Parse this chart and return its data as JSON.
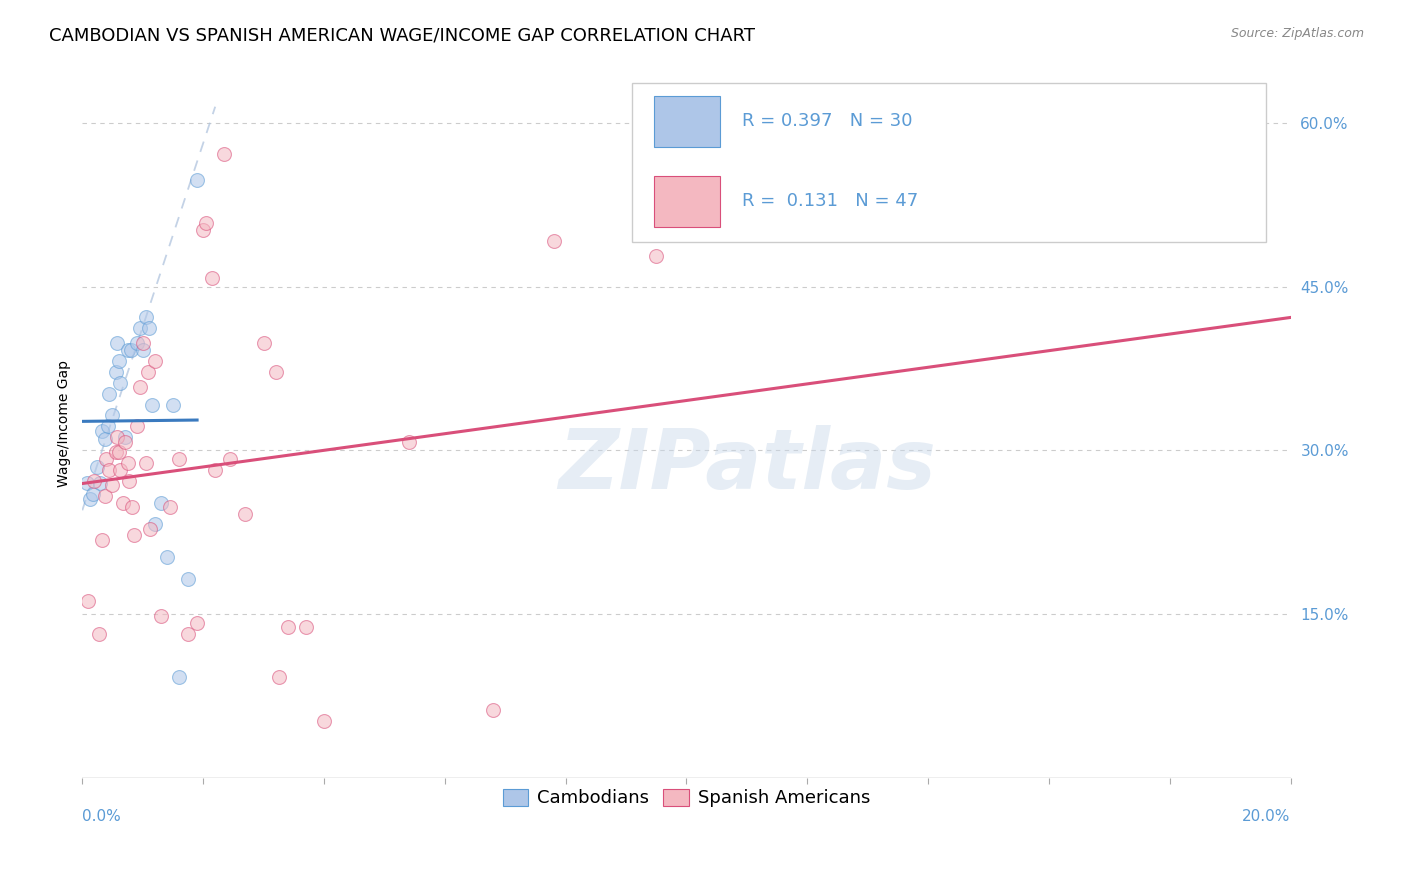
{
  "title": "CAMBODIAN VS SPANISH AMERICAN WAGE/INCOME GAP CORRELATION CHART",
  "source": "Source: ZipAtlas.com",
  "ylabel": "Wage/Income Gap",
  "cambodian_R": 0.397,
  "cambodian_N": 30,
  "spanish_R": 0.131,
  "spanish_N": 47,
  "blue_color": "#5b9bd5",
  "blue_scatter": "#aec6e8",
  "pink_scatter": "#f4b8c1",
  "trend_blue": "#3a7abf",
  "trend_pink": "#d94f7a",
  "watermark": "ZIPatlas",
  "cambodian_points": [
    [
      0.0008,
      0.27
    ],
    [
      0.0013,
      0.255
    ],
    [
      0.0018,
      0.26
    ],
    [
      0.0025,
      0.285
    ],
    [
      0.003,
      0.27
    ],
    [
      0.0032,
      0.318
    ],
    [
      0.0038,
      0.31
    ],
    [
      0.0042,
      0.322
    ],
    [
      0.0045,
      0.352
    ],
    [
      0.005,
      0.332
    ],
    [
      0.0055,
      0.372
    ],
    [
      0.0058,
      0.398
    ],
    [
      0.006,
      0.382
    ],
    [
      0.0063,
      0.362
    ],
    [
      0.007,
      0.312
    ],
    [
      0.0075,
      0.392
    ],
    [
      0.008,
      0.392
    ],
    [
      0.009,
      0.398
    ],
    [
      0.0095,
      0.412
    ],
    [
      0.01,
      0.392
    ],
    [
      0.0105,
      0.422
    ],
    [
      0.011,
      0.412
    ],
    [
      0.0115,
      0.342
    ],
    [
      0.012,
      0.232
    ],
    [
      0.013,
      0.252
    ],
    [
      0.014,
      0.202
    ],
    [
      0.015,
      0.342
    ],
    [
      0.016,
      0.092
    ],
    [
      0.0175,
      0.182
    ],
    [
      0.019,
      0.548
    ]
  ],
  "spanish_points": [
    [
      0.001,
      0.162
    ],
    [
      0.002,
      0.272
    ],
    [
      0.0028,
      0.132
    ],
    [
      0.0032,
      0.218
    ],
    [
      0.0038,
      0.258
    ],
    [
      0.004,
      0.292
    ],
    [
      0.0045,
      0.282
    ],
    [
      0.005,
      0.268
    ],
    [
      0.0055,
      0.298
    ],
    [
      0.0058,
      0.312
    ],
    [
      0.006,
      0.298
    ],
    [
      0.0063,
      0.282
    ],
    [
      0.0068,
      0.252
    ],
    [
      0.007,
      0.308
    ],
    [
      0.0075,
      0.288
    ],
    [
      0.0078,
      0.272
    ],
    [
      0.0082,
      0.248
    ],
    [
      0.0085,
      0.222
    ],
    [
      0.009,
      0.322
    ],
    [
      0.0095,
      0.358
    ],
    [
      0.01,
      0.398
    ],
    [
      0.0105,
      0.288
    ],
    [
      0.0108,
      0.372
    ],
    [
      0.0112,
      0.228
    ],
    [
      0.012,
      0.382
    ],
    [
      0.013,
      0.148
    ],
    [
      0.0145,
      0.248
    ],
    [
      0.016,
      0.292
    ],
    [
      0.0175,
      0.132
    ],
    [
      0.019,
      0.142
    ],
    [
      0.02,
      0.502
    ],
    [
      0.0205,
      0.508
    ],
    [
      0.0215,
      0.458
    ],
    [
      0.022,
      0.282
    ],
    [
      0.0235,
      0.572
    ],
    [
      0.0245,
      0.292
    ],
    [
      0.027,
      0.242
    ],
    [
      0.03,
      0.398
    ],
    [
      0.032,
      0.372
    ],
    [
      0.0325,
      0.092
    ],
    [
      0.034,
      0.138
    ],
    [
      0.037,
      0.138
    ],
    [
      0.04,
      0.052
    ],
    [
      0.054,
      0.308
    ],
    [
      0.068,
      0.062
    ],
    [
      0.078,
      0.492
    ],
    [
      0.095,
      0.478
    ]
  ],
  "xmin": 0.0,
  "xmax": 0.2,
  "ymin": 0.0,
  "ymax": 0.65,
  "grid_color": "#cccccc",
  "background_color": "#ffffff",
  "title_fontsize": 13,
  "axis_label_fontsize": 10,
  "tick_fontsize": 11,
  "legend_fontsize": 13,
  "watermark_fontsize": 60,
  "scatter_size": 100,
  "scatter_alpha": 0.55
}
